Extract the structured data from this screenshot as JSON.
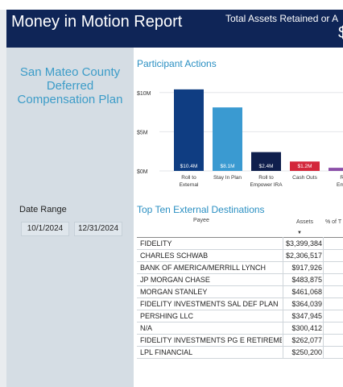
{
  "header": {
    "title": "Money in Motion Report",
    "assets_label": "Total Assets Retained or A",
    "assets_value": "$"
  },
  "sidebar": {
    "plan_name_lines": [
      "San Mateo County",
      "Deferred",
      "Compensation Plan"
    ],
    "date_range_label": "Date Range",
    "start_date": "10/1/2024",
    "end_date": "12/31/2024"
  },
  "sections": {
    "participant_actions": "Participant Actions",
    "top_ten": "Top Ten External Destinations"
  },
  "chart_data": {
    "type": "bar",
    "title": "Participant Actions",
    "categories": [
      "Roll to External",
      "Stay In Plan",
      "Roll to Empower IRA",
      "Cash Outs",
      "Roll to Empower"
    ],
    "category_label_lines": [
      [
        "Roll to",
        "External"
      ],
      [
        "Stay In Plan"
      ],
      [
        "Roll to",
        "Empower IRA"
      ],
      [
        "Cash Outs"
      ],
      [
        "Ro",
        "Empo"
      ]
    ],
    "values": [
      10.4,
      8.1,
      2.4,
      1.2,
      0.4
    ],
    "data_labels": [
      "$10.4M",
      "$8.1M",
      "$2.4M",
      "$1.2M",
      ""
    ],
    "colors": [
      "#0f3d82",
      "#3a9ad1",
      "#0f1f4d",
      "#d3273b",
      "#8b4fa8"
    ],
    "y_ticks": [
      "$0M",
      "$5M",
      "$10M"
    ],
    "y_tick_values": [
      0,
      5,
      10
    ],
    "ylim": [
      0,
      10.9
    ],
    "grid": true
  },
  "table": {
    "headers": {
      "payee": "Payee",
      "assets": "Assets",
      "pct": "% of T"
    },
    "sort_indicator": "▼",
    "rows": [
      {
        "payee": "FIDELITY",
        "assets": "$3,399,384"
      },
      {
        "payee": "CHARLES SCHWAB",
        "assets": "$2,306,517"
      },
      {
        "payee": "BANK OF AMERICA/MERRILL LYNCH",
        "assets": "$917,926"
      },
      {
        "payee": "JP MORGAN CHASE",
        "assets": "$483,875"
      },
      {
        "payee": "MORGAN STANLEY",
        "assets": "$461,068"
      },
      {
        "payee": "FIDELITY INVESTMENTS SAL DEF PLAN",
        "assets": "$364,039"
      },
      {
        "payee": "PERSHING LLC",
        "assets": "$347,945"
      },
      {
        "payee": "N/A",
        "assets": "$300,412"
      },
      {
        "payee": "FIDELITY INVESTMENTS PG E RETIREMEN",
        "assets": "$262,077"
      },
      {
        "payee": "LPL FINANCIAL",
        "assets": "$250,200"
      }
    ]
  }
}
